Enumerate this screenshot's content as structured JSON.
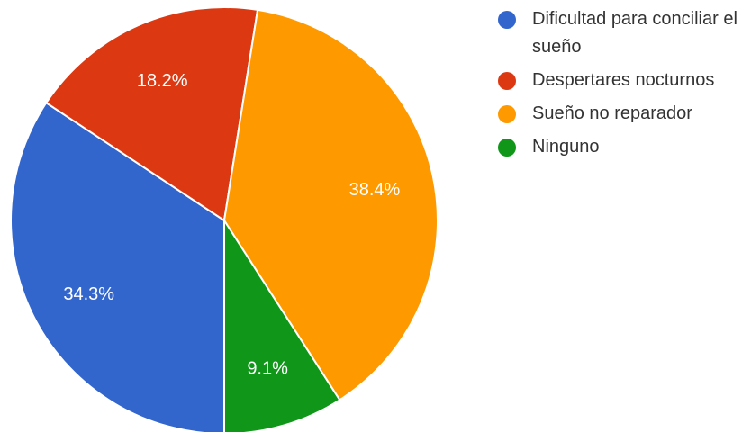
{
  "chart_data": {
    "type": "pie",
    "slices": [
      {
        "label": "Dificultad para conciliar el sueño",
        "value": 34.3,
        "display": "34.3%",
        "color": "#3366CC"
      },
      {
        "label": "Despertares nocturnos",
        "value": 18.2,
        "display": "18.2%",
        "color": "#DC3912"
      },
      {
        "label": "Sueño no reparador",
        "value": 38.4,
        "display": "38.4%",
        "color": "#FF9900"
      },
      {
        "label": "Ninguno",
        "value": 9.1,
        "display": "9.1%",
        "color": "#109618"
      }
    ],
    "start_angle_deg": 90,
    "direction": "clockwise",
    "legend_position": "right"
  }
}
